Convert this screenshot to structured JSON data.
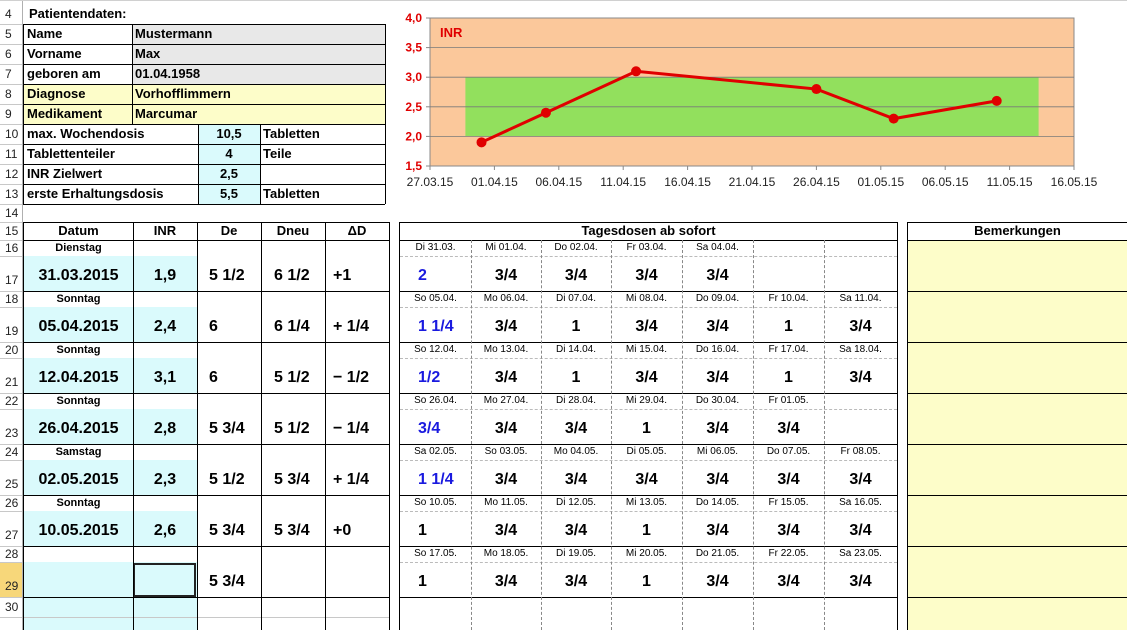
{
  "row_numbers": [
    "4",
    "5",
    "6",
    "7",
    "8",
    "9",
    "10",
    "11",
    "12",
    "13",
    "14",
    "15",
    "16",
    "17",
    "18",
    "19",
    "20",
    "21",
    "22",
    "23",
    "24",
    "25",
    "26",
    "27",
    "28",
    "29",
    "30"
  ],
  "patient": {
    "title": "Patientendaten:",
    "fields": [
      {
        "label": "Name",
        "value": "Mustermann"
      },
      {
        "label": "Vorname",
        "value": "Max"
      },
      {
        "label": "geboren am",
        "value": "01.04.1958"
      },
      {
        "label": "Diagnose",
        "value": "Vorhofflimmern"
      },
      {
        "label": "Medikament",
        "value": "Marcumar"
      }
    ],
    "params": [
      {
        "label": "max. Wochendosis",
        "value": "10,5",
        "unit": "Tabletten"
      },
      {
        "label": "Tablettenteiler",
        "value": "4",
        "unit": "Teile"
      },
      {
        "label": "INR Zielwert",
        "value": "2,5",
        "unit": ""
      },
      {
        "label": "erste Erhaltungsdosis",
        "value": "5,5",
        "unit": "Tabletten"
      }
    ]
  },
  "table": {
    "headers": {
      "datum": "Datum",
      "inr": "INR",
      "de": "De",
      "dneu": "Dneu",
      "delta": "ΔD",
      "tagesdosen": "Tagesdosen ab sofort",
      "bemerkungen": "Bemerkungen"
    },
    "entries": [
      {
        "weekday": "Dienstag",
        "date": "31.03.2015",
        "inr": "1,9",
        "de": "5 1/2",
        "dneu": "6 1/2",
        "delta": "+1",
        "day_labels": [
          "Di 31.03.",
          "Mi 01.04.",
          "Do 02.04.",
          "Fr 03.04.",
          "Sa 04.04.",
          "",
          ""
        ],
        "doses": [
          "2",
          "3/4",
          "3/4",
          "3/4",
          "3/4",
          "",
          ""
        ]
      },
      {
        "weekday": "Sonntag",
        "date": "05.04.2015",
        "inr": "2,4",
        "de": "6",
        "dneu": "6 1/4",
        "delta": "+ 1/4",
        "day_labels": [
          "So 05.04.",
          "Mo 06.04.",
          "Di 07.04.",
          "Mi 08.04.",
          "Do 09.04.",
          "Fr 10.04.",
          "Sa 11.04."
        ],
        "doses": [
          "1 1/4",
          "3/4",
          "1",
          "3/4",
          "3/4",
          "1",
          "3/4"
        ]
      },
      {
        "weekday": "Sonntag",
        "date": "12.04.2015",
        "inr": "3,1",
        "de": "6",
        "dneu": "5 1/2",
        "delta": "− 1/2",
        "day_labels": [
          "So 12.04.",
          "Mo 13.04.",
          "Di 14.04.",
          "Mi 15.04.",
          "Do 16.04.",
          "Fr 17.04.",
          "Sa 18.04."
        ],
        "doses": [
          "1/2",
          "3/4",
          "1",
          "3/4",
          "3/4",
          "1",
          "3/4"
        ]
      },
      {
        "weekday": "Sonntag",
        "date": "26.04.2015",
        "inr": "2,8",
        "de": "5 3/4",
        "dneu": "5 1/2",
        "delta": "− 1/4",
        "day_labels": [
          "So 26.04.",
          "Mo 27.04.",
          "Di 28.04.",
          "Mi 29.04.",
          "Do 30.04.",
          "Fr 01.05.",
          ""
        ],
        "doses": [
          "3/4",
          "3/4",
          "3/4",
          "1",
          "3/4",
          "3/4",
          ""
        ]
      },
      {
        "weekday": "Samstag",
        "date": "02.05.2015",
        "inr": "2,3",
        "de": "5 1/2",
        "dneu": "5 3/4",
        "delta": "+ 1/4",
        "day_labels": [
          "Sa 02.05.",
          "So 03.05.",
          "Mo 04.05.",
          "Di 05.05.",
          "Mi 06.05.",
          "Do 07.05.",
          "Fr 08.05."
        ],
        "doses": [
          "1 1/4",
          "3/4",
          "3/4",
          "3/4",
          "3/4",
          "3/4",
          "3/4"
        ]
      },
      {
        "weekday": "Sonntag",
        "date": "10.05.2015",
        "inr": "2,6",
        "de": "5 3/4",
        "dneu": "5 3/4",
        "delta": "+0",
        "day_labels": [
          "So 10.05.",
          "Mo 11.05.",
          "Di 12.05.",
          "Mi 13.05.",
          "Do 14.05.",
          "Fr 15.05.",
          "Sa 16.05."
        ],
        "doses": [
          "1",
          "3/4",
          "3/4",
          "1",
          "3/4",
          "3/4",
          "3/4"
        ]
      },
      {
        "weekday": "",
        "date": "",
        "inr": "",
        "de": "5 3/4",
        "dneu": "",
        "delta": "",
        "day_labels": [
          "So 17.05.",
          "Mo 18.05.",
          "Di 19.05.",
          "Mi 20.05.",
          "Do 21.05.",
          "Fr 22.05.",
          "Sa 23.05."
        ],
        "doses": [
          "1",
          "3/4",
          "3/4",
          "1",
          "3/4",
          "3/4",
          "3/4"
        ]
      }
    ]
  },
  "chart_data": {
    "type": "line",
    "title": "",
    "series": [
      {
        "name": "INR",
        "x": [
          "31.03.15",
          "05.04.15",
          "12.04.15",
          "26.04.15",
          "02.05.15",
          "10.05.15"
        ],
        "values": [
          1.9,
          2.4,
          3.1,
          2.8,
          2.3,
          2.6
        ]
      }
    ],
    "x_tick_labels": [
      "27.03.15",
      "01.04.15",
      "06.04.15",
      "11.04.15",
      "16.04.15",
      "21.04.15",
      "26.04.15",
      "01.05.15",
      "06.05.15",
      "11.05.15",
      "16.05.15"
    ],
    "xlim": [
      "27.03.15",
      "16.05.15"
    ],
    "y_tick_labels": [
      "1,5",
      "2,0",
      "2,5",
      "3,0",
      "3,5",
      "4,0"
    ],
    "ylim": [
      1.5,
      4.0
    ],
    "target_band": [
      2.0,
      3.0
    ],
    "grid": true,
    "colors": {
      "plot_bg": "#fbc89b",
      "band": "#92e05d",
      "line": "#e00000",
      "axis_text": "#e00000"
    }
  }
}
